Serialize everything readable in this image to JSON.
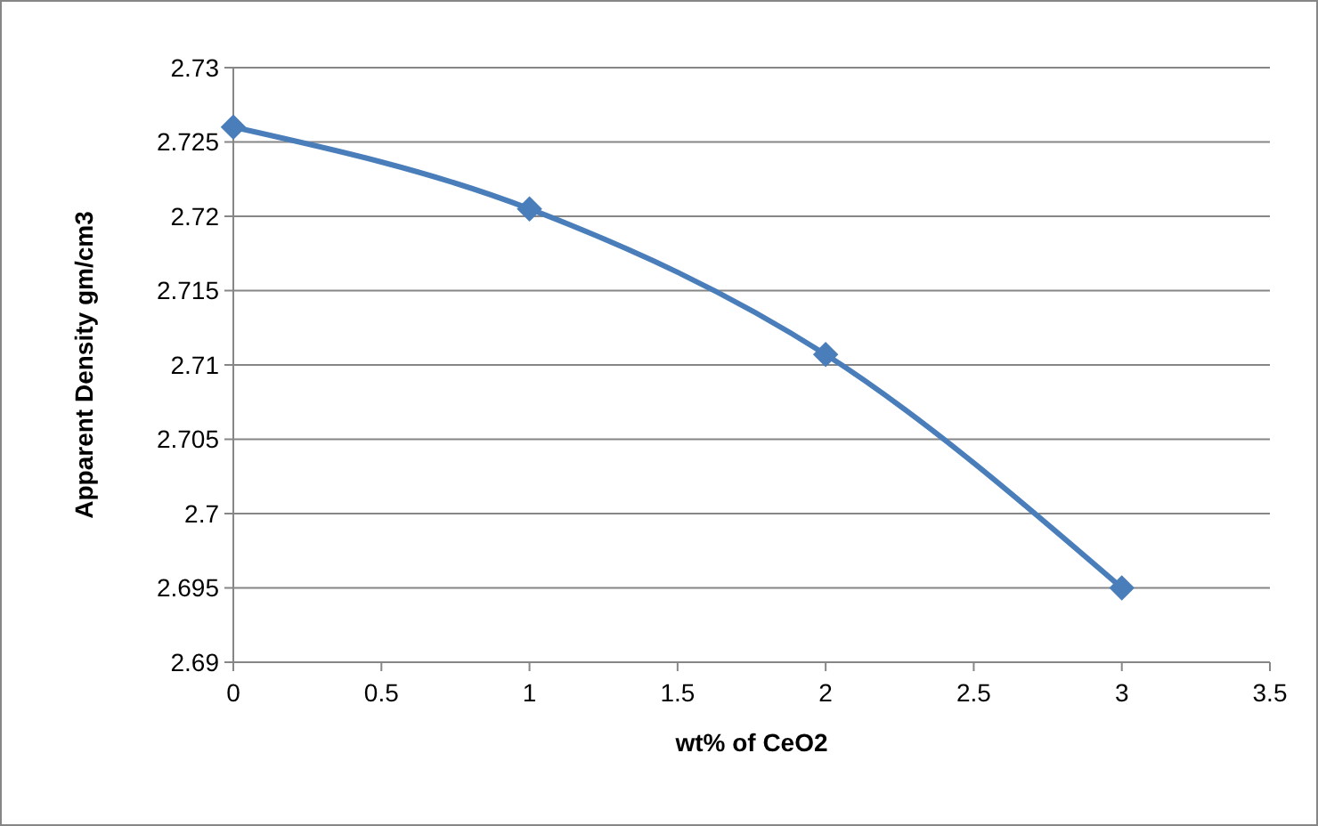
{
  "chart_data": {
    "type": "line",
    "xlabel": "wt% of CeO2",
    "ylabel": "Apparent Density gm/cm3",
    "x": [
      0,
      1,
      2,
      3
    ],
    "series": [
      {
        "color": "#4a7ebb",
        "values": [
          2.726,
          2.7205,
          2.7107,
          2.695
        ]
      }
    ],
    "xlim": [
      0,
      3.5
    ],
    "xticks": [
      0,
      0.5,
      1,
      1.5,
      2,
      2.5,
      3,
      3.5
    ],
    "ylim": [
      2.69,
      2.73
    ],
    "yticks": [
      2.69,
      2.695,
      2.7,
      2.705,
      2.71,
      2.715,
      2.72,
      2.725,
      2.73
    ],
    "grid": "y",
    "marker": "diamond",
    "line_style": "solid"
  }
}
